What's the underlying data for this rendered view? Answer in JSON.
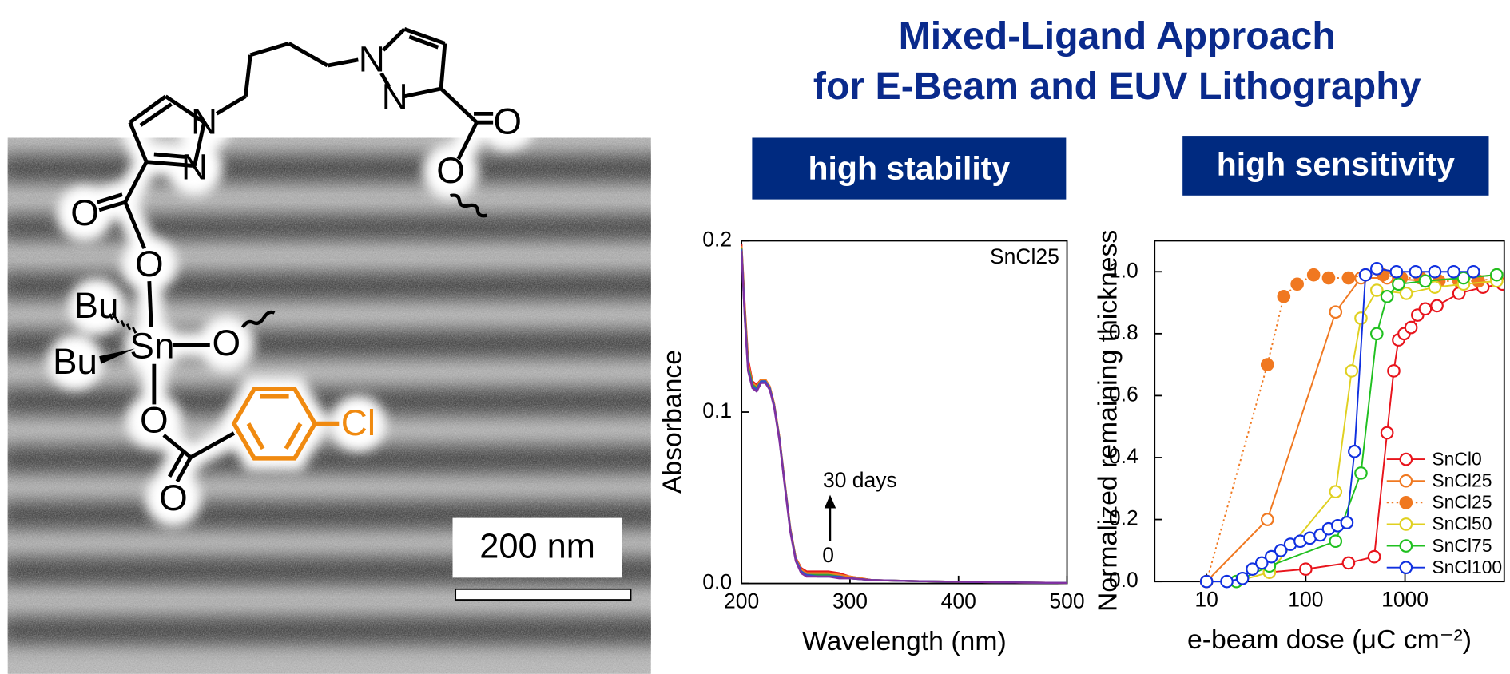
{
  "header": {
    "title": [
      "Mixed-Ligand Approach",
      "for E-Beam and EUV Lithography"
    ],
    "badges": [
      "high stability",
      "high sensitivity"
    ]
  },
  "structure": {
    "atoms": [
      "N",
      "N",
      "N",
      "N",
      "O",
      "O",
      "O",
      "O",
      "O",
      "O",
      "O",
      "Bu",
      "Bu",
      "Sn",
      "Cl"
    ],
    "scale_bar": "200 nm"
  },
  "chart_data": [
    {
      "type": "line",
      "xlabel": "Wavelength (nm)",
      "ylabel": "Absorbance",
      "annotations": [
        "SnCl25",
        "30 days",
        "0"
      ],
      "xlim": [
        200,
        500
      ],
      "ylim": [
        0,
        0.2
      ],
      "xticks": [
        200,
        300,
        400,
        500
      ],
      "yticks": [
        {
          "value": 0,
          "label": "0.0"
        },
        0.1,
        0.2
      ],
      "x": [
        200,
        203,
        206,
        210,
        214,
        218,
        222,
        226,
        230,
        235,
        240,
        245,
        250,
        255,
        260,
        270,
        280,
        290,
        300,
        320,
        350,
        400,
        450,
        500
      ],
      "series": [
        {
          "color": "#e41a1c",
          "values": [
            0.198,
            0.162,
            0.131,
            0.118,
            0.116,
            0.119,
            0.119,
            0.115,
            0.105,
            0.085,
            0.058,
            0.032,
            0.015,
            0.009,
            0.007,
            0.007,
            0.007,
            0.006,
            0.004,
            0.002,
            0.0015,
            0.001,
            0.0006,
            0.0003
          ]
        },
        {
          "color": "#f08020",
          "values": [
            0.197,
            0.16,
            0.129,
            0.117,
            0.115,
            0.119,
            0.119,
            0.115,
            0.105,
            0.085,
            0.058,
            0.032,
            0.015,
            0.008,
            0.006,
            0.006,
            0.006,
            0.005,
            0.004,
            0.002,
            0.0015,
            0.001,
            0.0006,
            0.0003
          ]
        },
        {
          "color": "#30a040",
          "values": [
            0.196,
            0.158,
            0.127,
            0.116,
            0.114,
            0.118,
            0.118,
            0.114,
            0.104,
            0.084,
            0.057,
            0.031,
            0.014,
            0.007,
            0.005,
            0.005,
            0.005,
            0.004,
            0.003,
            0.002,
            0.0015,
            0.001,
            0.0006,
            0.0003
          ]
        },
        {
          "color": "#3050d0",
          "values": [
            0.195,
            0.156,
            0.125,
            0.115,
            0.113,
            0.118,
            0.118,
            0.114,
            0.104,
            0.084,
            0.057,
            0.031,
            0.014,
            0.007,
            0.005,
            0.004,
            0.004,
            0.004,
            0.003,
            0.002,
            0.0015,
            0.001,
            0.0006,
            0.0003
          ]
        },
        {
          "color": "#8030a0",
          "values": [
            0.194,
            0.155,
            0.124,
            0.114,
            0.112,
            0.117,
            0.117,
            0.113,
            0.103,
            0.083,
            0.056,
            0.03,
            0.013,
            0.006,
            0.004,
            0.004,
            0.004,
            0.003,
            0.003,
            0.002,
            0.0015,
            0.001,
            0.0006,
            0.0003
          ]
        }
      ]
    },
    {
      "type": "line",
      "xlabel": "e-beam dose (μC cm⁻²)",
      "ylabel": "Normalized remaining thickness",
      "xscale": "log",
      "xlim": [
        3,
        10000
      ],
      "ylim": [
        0,
        1.1
      ],
      "xticks": [
        10,
        100,
        1000
      ],
      "yticks": [
        {
          "value": 0,
          "label": "0.0"
        },
        0.2,
        0.4,
        0.6,
        0.8,
        {
          "value": 1,
          "label": "1.0"
        }
      ],
      "legend": "lower right",
      "series": [
        {
          "name": "SnCl0",
          "color": "#e8141c",
          "marker": "open",
          "linestyle": "solid",
          "x": [
            43,
            100,
            270,
            490,
            660,
            770,
            860,
            980,
            1150,
            1340,
            1600,
            2100,
            3500,
            6100,
            9600
          ],
          "values": [
            0.03,
            0.04,
            0.06,
            0.08,
            0.48,
            0.68,
            0.78,
            0.8,
            0.82,
            0.86,
            0.88,
            0.89,
            0.93,
            0.95,
            0.96
          ]
        },
        {
          "name": "SnCl25",
          "color": "#f07820",
          "marker": "open",
          "linestyle": "solid",
          "x": [
            10,
            41,
            200,
            360,
            660,
            1600,
            3900,
            8400
          ],
          "values": [
            0.0,
            0.2,
            0.87,
            0.98,
            0.98,
            0.97,
            0.98,
            0.99
          ]
        },
        {
          "name": "SnCl25",
          "color": "#f07820",
          "marker": "filled",
          "linestyle": "dotted",
          "x": [
            10,
            41,
            60,
            82,
            120,
            170,
            270,
            400,
            600,
            920,
            1430,
            2200,
            3500,
            5500,
            8400
          ],
          "values": [
            0.0,
            0.7,
            0.92,
            0.96,
            0.99,
            0.98,
            0.98,
            0.99,
            0.99,
            0.98,
            0.98,
            0.97,
            0.97,
            0.97,
            0.98
          ]
        },
        {
          "name": "SnCl50",
          "color": "#e0d020",
          "marker": "open",
          "linestyle": "solid",
          "x": [
            20,
            43,
            200,
            290,
            360,
            520,
            1030,
            2000,
            3900,
            8400
          ],
          "values": [
            0.0,
            0.03,
            0.29,
            0.68,
            0.85,
            0.94,
            0.93,
            0.95,
            0.96,
            0.97
          ]
        },
        {
          "name": "SnCl75",
          "color": "#20c020",
          "marker": "open",
          "linestyle": "solid",
          "x": [
            20,
            43,
            200,
            360,
            520,
            660,
            860,
            1600,
            3900,
            8400
          ],
          "values": [
            0.0,
            0.05,
            0.13,
            0.35,
            0.8,
            0.92,
            0.96,
            0.97,
            0.98,
            0.99
          ]
        },
        {
          "name": "SnCl100",
          "color": "#1030e0",
          "marker": "open",
          "linestyle": "solid",
          "x": [
            10,
            16,
            23,
            29,
            36,
            45,
            56,
            70,
            88,
            110,
            140,
            170,
            210,
            260,
            310,
            400,
            520,
            820,
            1280,
            2000,
            3100,
            4900
          ],
          "values": [
            0.0,
            0.0,
            0.01,
            0.04,
            0.06,
            0.08,
            0.1,
            0.12,
            0.13,
            0.14,
            0.15,
            0.17,
            0.18,
            0.19,
            0.42,
            0.99,
            1.01,
            1.0,
            1.0,
            1.0,
            1.0,
            1.0
          ]
        }
      ]
    }
  ]
}
